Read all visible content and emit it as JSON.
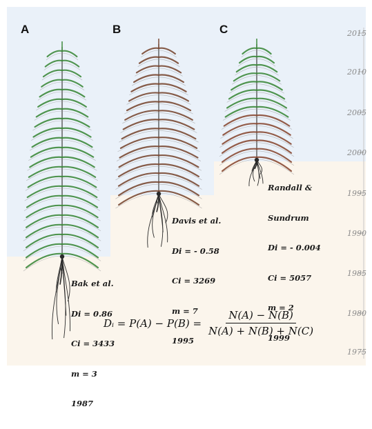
{
  "colors": {
    "sky": "#eaf1f9",
    "ground": "#fbf5ec",
    "green_tree": "#3e8a3c",
    "brown_tree": "#7a4a34",
    "mixed_tree_base": "#8a4b35",
    "root": "#2a2a2a",
    "axis": "#9a9a9a"
  },
  "panels": [
    {
      "letter": "A",
      "author": "Bak et al.",
      "di": "Di = 0.86",
      "ci": "Ci = 3433",
      "m": "m = 3",
      "year": "1987"
    },
    {
      "letter": "B",
      "author": "Davis et al.",
      "di": "Di = - 0.58",
      "ci": "Ci = 3269",
      "m": "m = 7",
      "year": "1995"
    },
    {
      "letter": "C",
      "author_line1": "Randall &",
      "author_line2": "Sundrum",
      "di": "Di = - 0.004",
      "ci": "Ci = 5057",
      "m": "m = 2",
      "year": "1999"
    }
  ],
  "year_axis": [
    "2015",
    "2010",
    "2005",
    "2000",
    "1995",
    "1990",
    "1985",
    "1980",
    "1975"
  ],
  "formula": {
    "lhs": "Dᵢ = P(A) − P(B) =",
    "numerator": "N(A) − N(B)",
    "denominator": "N(A) + N(B) + N(C)"
  }
}
